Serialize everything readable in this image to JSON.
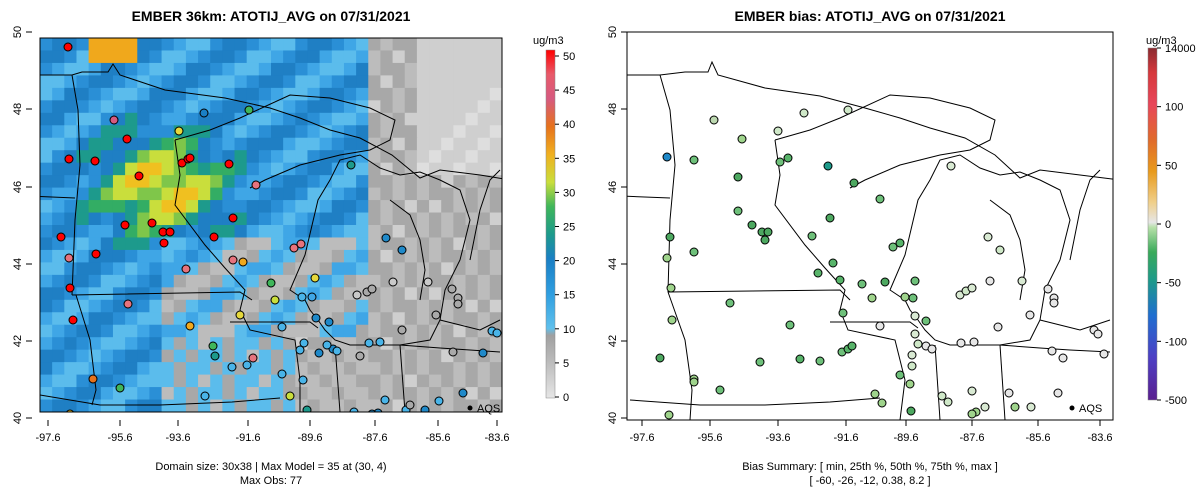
{
  "left_panel": {
    "title": "EMBER 36km: ATOTIJ_AVG on 07/31/2021",
    "units": "ug/m3",
    "x_ticks": [
      "-97.6",
      "-95.6",
      "-93.6",
      "-91.6",
      "-89.6",
      "-87.6",
      "-85.6",
      "-83.6"
    ],
    "y_ticks": [
      "40",
      "42",
      "44",
      "46",
      "48",
      "50"
    ],
    "colorbar_ticks": [
      "0",
      "5",
      "10",
      "15",
      "20",
      "25",
      "30",
      "35",
      "40",
      "45",
      "50"
    ],
    "legend_label": "AQS",
    "footer_line1": "Domain size: 30x38 | Max Model = 35 at (30, 4)",
    "footer_line2": "Max Obs: 77"
  },
  "right_panel": {
    "title": "EMBER bias: ATOTIJ_AVG on 07/31/2021",
    "units": "ug/m3",
    "x_ticks": [
      "-97.6",
      "-95.6",
      "-93.6",
      "-91.6",
      "-89.6",
      "-87.6",
      "-85.6",
      "-83.6"
    ],
    "y_ticks": [
      "40",
      "42",
      "44",
      "46",
      "48",
      "50"
    ],
    "colorbar_ticks": [
      "-500",
      "-100",
      "-50",
      "0",
      "50",
      "100",
      "14000"
    ],
    "legend_label": "AQS",
    "footer_line1": "Bias Summary: [ min, 25th %, 50th %, 75th %, max ]",
    "footer_line2": "[ -60,   -26,   -12,   0.38,   8.2 ]"
  },
  "colors": {
    "conc_scale": [
      "#e6e6e6",
      "#c9c9c9",
      "#a9a9a9",
      "#49b4e8",
      "#1f89c9",
      "#1c9a8c",
      "#3fb65a",
      "#c9de3c",
      "#f0a81c",
      "#e6721c",
      "#d84a6a",
      "#e6737d",
      "#ff0000"
    ],
    "bias_scale": [
      "#5a1f8f",
      "#4d3fc4",
      "#1f74c9",
      "#1d9a8a",
      "#2fa552",
      "#91cf7a",
      "#d9ead3",
      "#e6e6e6",
      "#f0d08c",
      "#e89a1c",
      "#e06a2c",
      "#e8465a",
      "#d6383c",
      "#b04048"
    ]
  }
}
